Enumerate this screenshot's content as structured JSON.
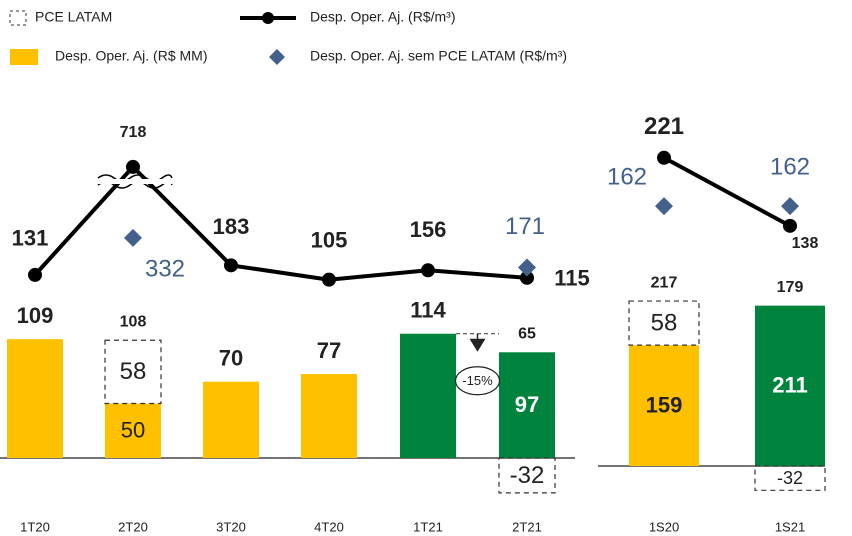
{
  "chart_data": [
    {
      "type": "combo",
      "categories": [
        "1T20",
        "2T20",
        "3T20",
        "4T20",
        "1T21",
        "2T21"
      ],
      "series": [
        {
          "name": "Desp. Oper. Aj. (R$ MM)",
          "kind": "bar",
          "colors": [
            "#ffc000",
            "#ffc000",
            "#ffc000",
            "#ffc000",
            "#00843d",
            "#00843d"
          ],
          "values": [
            109,
            50,
            70,
            77,
            114,
            97
          ]
        },
        {
          "name": "PCE LATAM",
          "kind": "dashed_bar",
          "values": [
            null,
            58,
            null,
            null,
            null,
            -32
          ]
        },
        {
          "name": "Desp. Oper. Aj. (R$/m³)",
          "kind": "line",
          "color": "#000000",
          "values": [
            131,
            718,
            183,
            105,
            156,
            115
          ]
        },
        {
          "name": "Desp. Oper. Aj. sem PCE LATAM (R$/m³)",
          "kind": "diamond",
          "color": "#44618c",
          "values": [
            null,
            332,
            null,
            null,
            null,
            171
          ]
        }
      ],
      "totals": [
        null,
        108,
        null,
        null,
        null,
        65
      ],
      "annotations": [
        {
          "text": "-15%"
        }
      ]
    },
    {
      "type": "combo",
      "categories": [
        "1S20",
        "1S21"
      ],
      "series": [
        {
          "kind": "bar",
          "colors": [
            "#ffc000",
            "#00843d"
          ],
          "values": [
            159,
            211
          ]
        },
        {
          "kind": "dashed_bar",
          "values": [
            58,
            -32
          ]
        },
        {
          "kind": "line",
          "color": "#000000",
          "values": [
            221,
            138
          ]
        },
        {
          "kind": "diamond",
          "color": "#44618c",
          "values": [
            162,
            162
          ]
        }
      ],
      "totals": [
        217,
        179
      ]
    }
  ]
}
